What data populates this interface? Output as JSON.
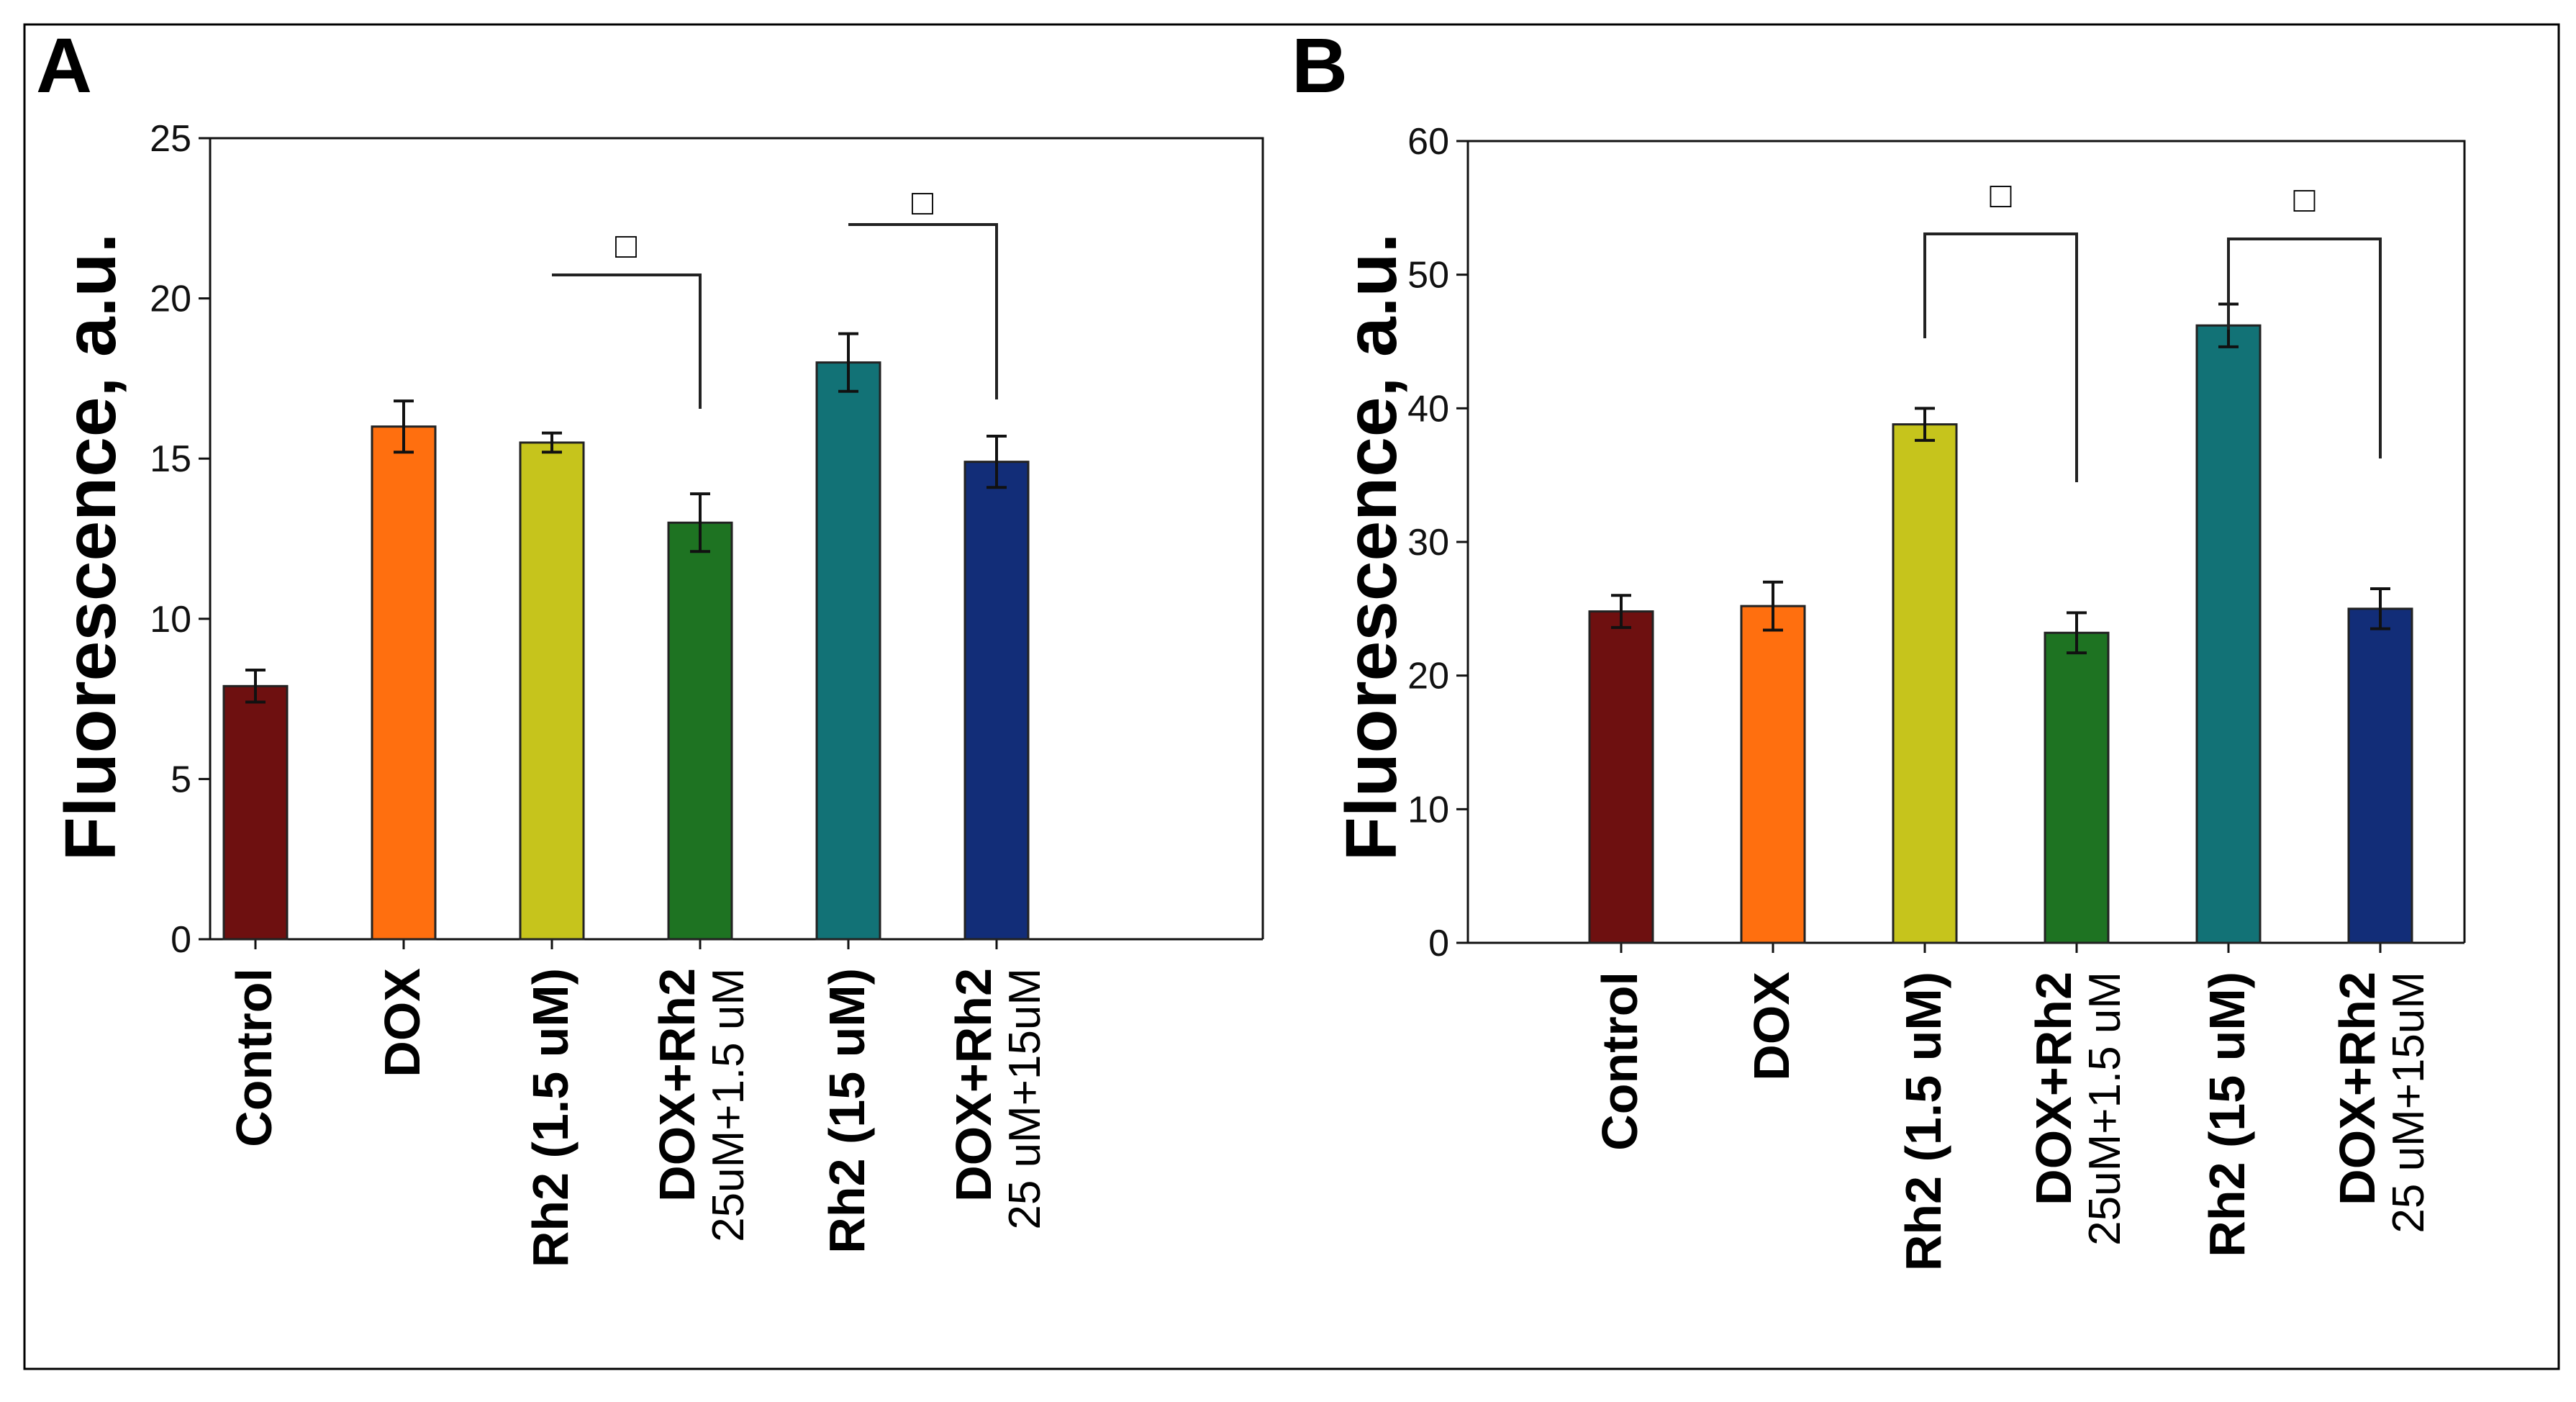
{
  "chart_data": [
    {
      "type": "bar",
      "panel_label": "A",
      "ylabel": "Fluorescence, a.u.",
      "xlabel": "",
      "ylim": [
        0,
        25
      ],
      "yticks": [
        0,
        5,
        10,
        15,
        20,
        25
      ],
      "grid": false,
      "categories": [
        [
          "Control"
        ],
        [
          "DOX"
        ],
        [
          "Rh2 (1.5 uM)"
        ],
        [
          "DOX+Rh2",
          "25uM+1.5 uM"
        ],
        [
          "Rh2 (15 uM)"
        ],
        [
          "DOX+Rh2",
          "25 uM+15uM"
        ]
      ],
      "values": [
        7.9,
        16.0,
        15.5,
        13.0,
        18.0,
        14.9
      ],
      "errors": [
        0.5,
        0.8,
        0.3,
        0.9,
        0.9,
        0.8
      ],
      "colors": [
        "#6e1010",
        "#ff6f0f",
        "#c6c41c",
        "#1e7322",
        "#127276",
        "#122d78"
      ],
      "annotations": [
        {
          "type": "bracket",
          "from": 2,
          "to": 3,
          "label": "□"
        },
        {
          "type": "bracket",
          "from": 4,
          "to": 5,
          "label": "□"
        }
      ]
    },
    {
      "type": "bar",
      "panel_label": "B",
      "ylabel": "Fluorescence, a.u.",
      "xlabel": "",
      "ylim": [
        0,
        60
      ],
      "yticks": [
        0,
        10,
        20,
        30,
        40,
        50,
        60
      ],
      "grid": false,
      "categories": [
        [
          "Control"
        ],
        [
          "DOX"
        ],
        [
          "Rh2 (1.5 uM)"
        ],
        [
          "DOX+Rh2",
          "25uM+1.5 uM"
        ],
        [
          "Rh2 (15 uM)"
        ],
        [
          "DOX+Rh2",
          "25 uM+15uM"
        ]
      ],
      "values": [
        24.8,
        25.2,
        38.8,
        23.2,
        46.2,
        25.0
      ],
      "errors": [
        1.2,
        1.8,
        1.2,
        1.5,
        1.6,
        1.5
      ],
      "colors": [
        "#6e1010",
        "#ff6f0f",
        "#c6c41c",
        "#1e7322",
        "#127276",
        "#122d78"
      ],
      "annotations": [
        {
          "type": "bracket",
          "from": 2,
          "to": 3,
          "label": "□"
        },
        {
          "type": "bracket",
          "from": 4,
          "to": 5,
          "label": "□"
        }
      ]
    }
  ]
}
